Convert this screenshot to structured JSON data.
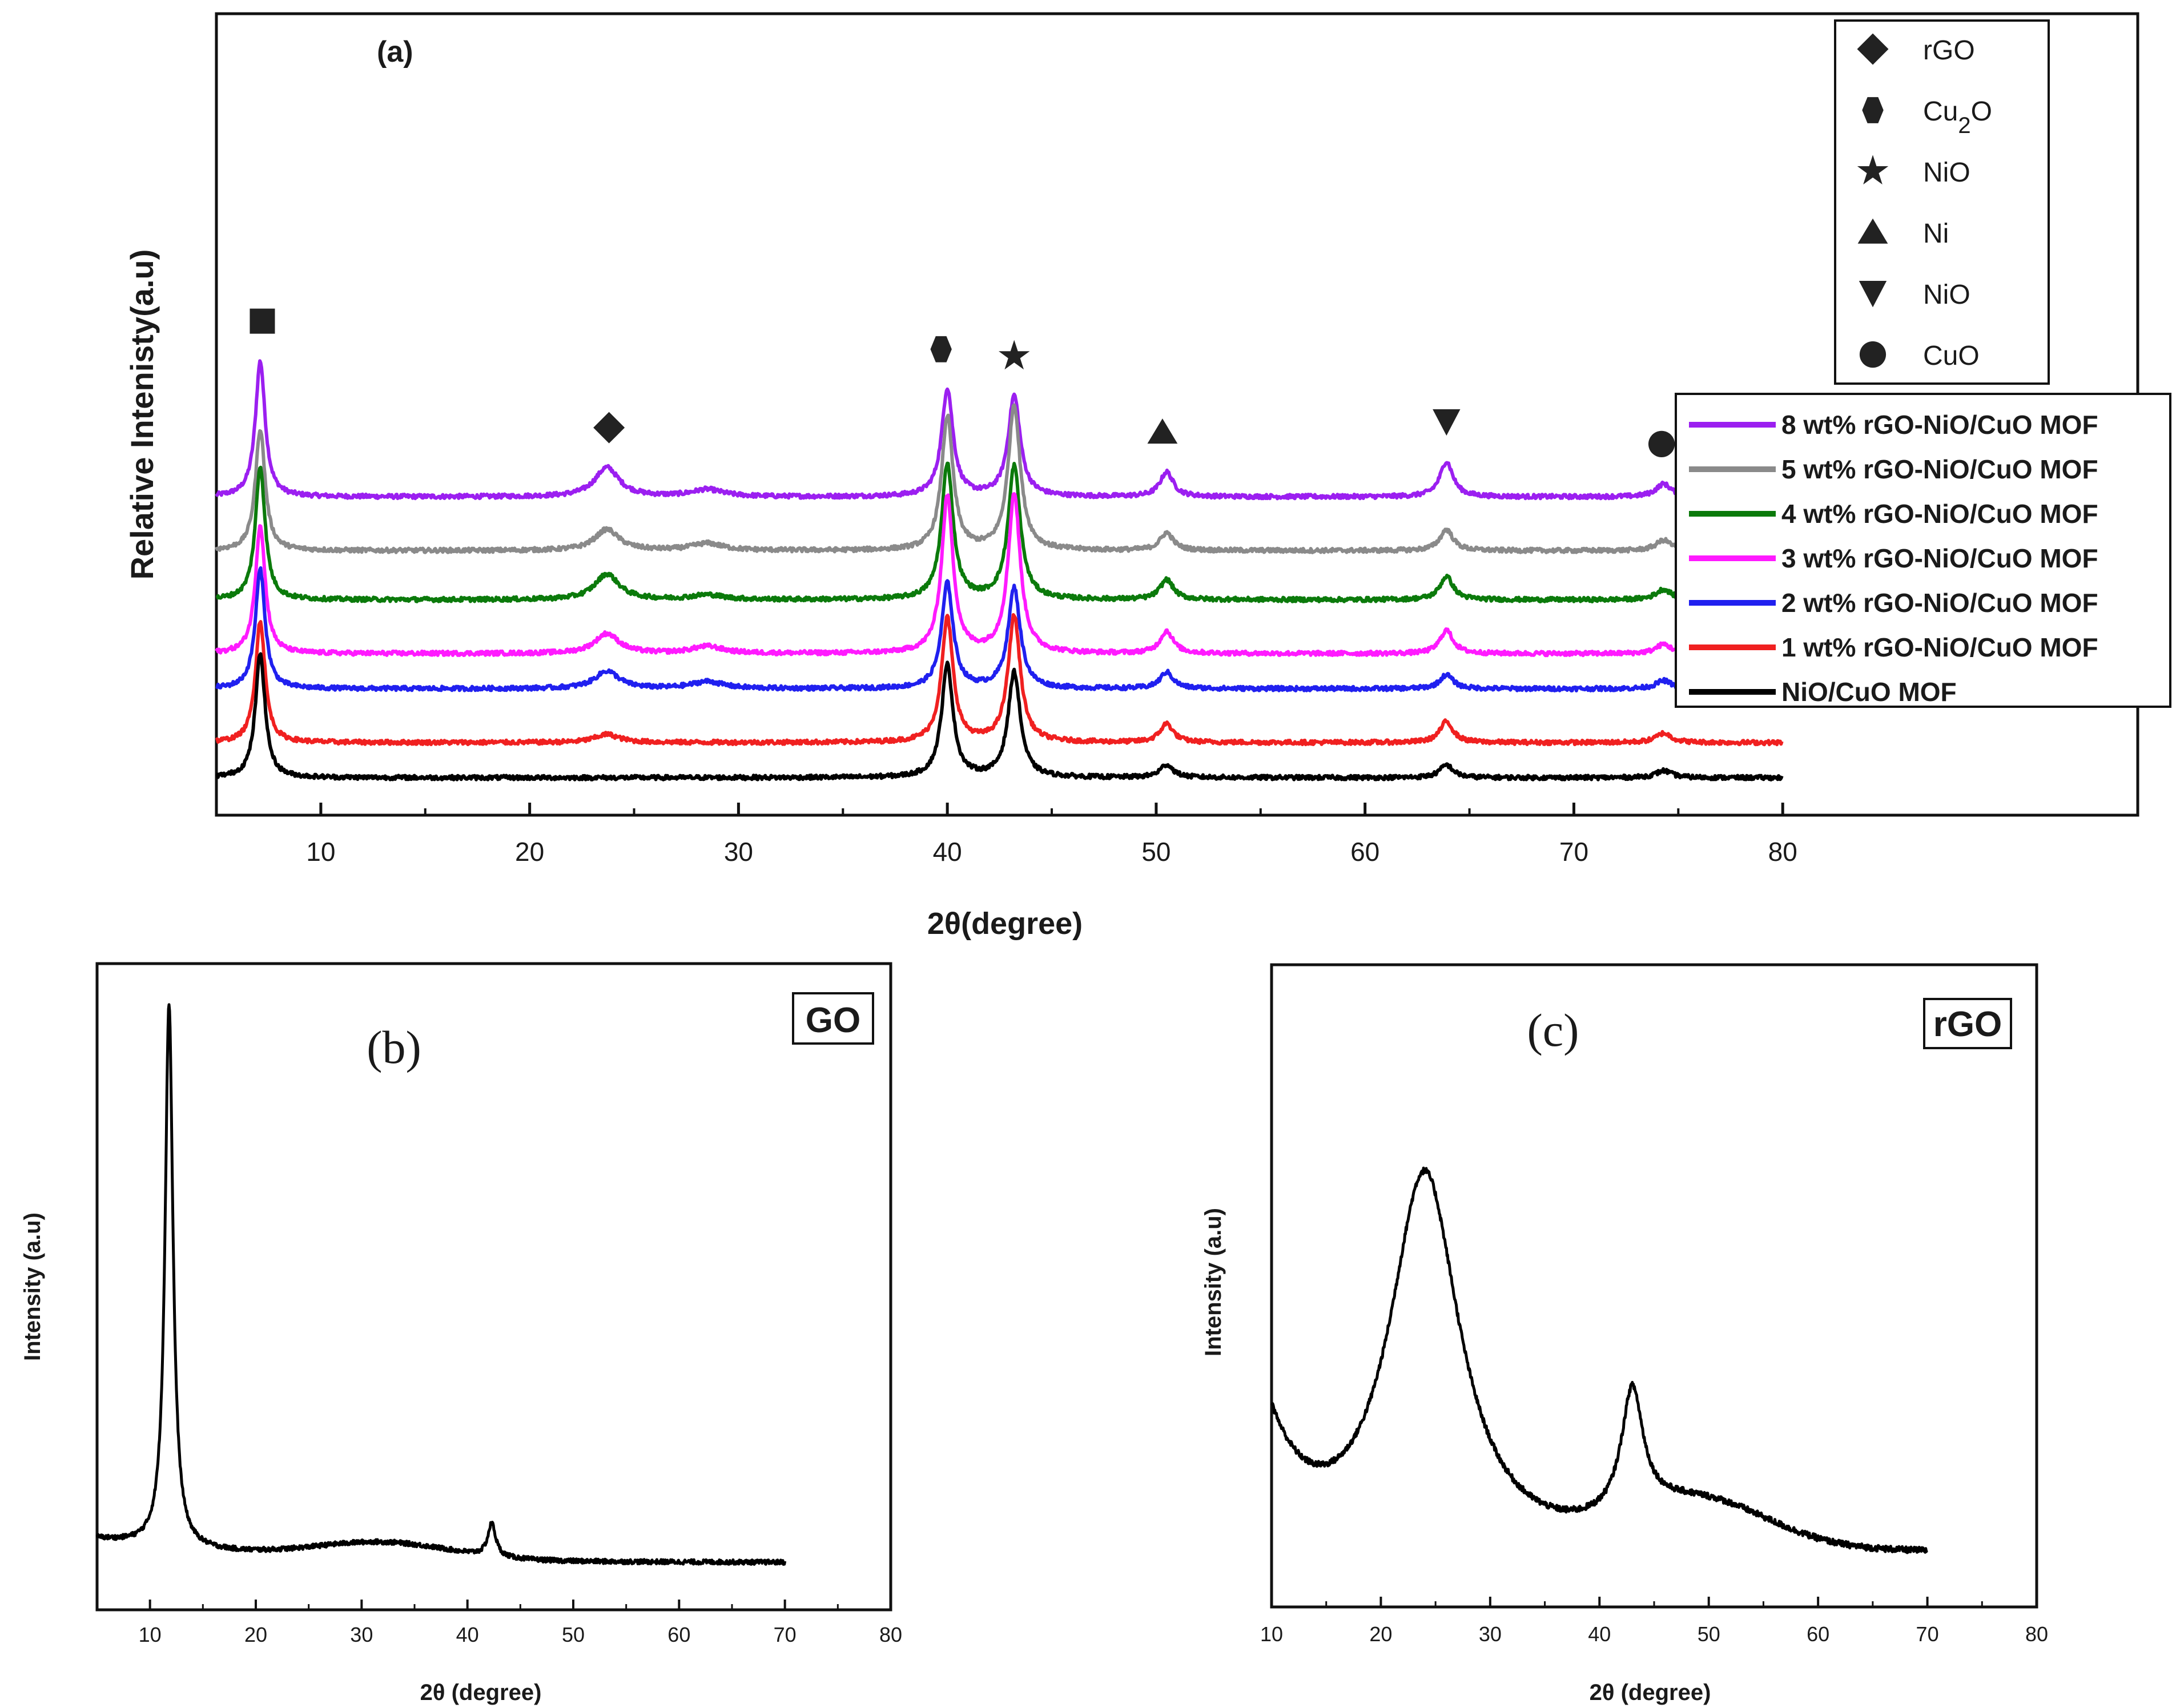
{
  "chart_data": [
    {
      "id": "a",
      "type": "line",
      "panel_label": "(a)",
      "xlabel": "2θ(degree)",
      "ylabel": "Relative Intenisty(a.u)",
      "xlim": [
        5,
        97
      ],
      "xticks": [
        10,
        20,
        30,
        40,
        50,
        60,
        70,
        80
      ],
      "x_data_range": [
        5,
        80
      ],
      "peaks": [
        {
          "x": 7.1,
          "w": 0.28
        },
        {
          "x": 23.7,
          "w": 0.7
        },
        {
          "x": 28.5,
          "w": 0.9
        },
        {
          "x": 40.0,
          "w": 0.33
        },
        {
          "x": 43.2,
          "w": 0.35
        },
        {
          "x": 50.5,
          "w": 0.38
        },
        {
          "x": 63.9,
          "w": 0.38
        },
        {
          "x": 74.3,
          "w": 0.45
        }
      ],
      "series": [
        {
          "name": "8 wt% rGO-NiO/CuO MOF",
          "color": "#9b1ff0",
          "offset": 13.6,
          "heights": [
            5.8,
            1.25,
            0.3,
            4.6,
            4.3,
            1.05,
            1.5,
            0.55
          ]
        },
        {
          "name": "5 wt% rGO-NiO/CuO MOF",
          "color": "#8a8a8a",
          "offset": 11.3,
          "heights": [
            5.2,
            0.9,
            0.3,
            5.7,
            6.2,
            0.75,
            0.9,
            0.45
          ]
        },
        {
          "name": "4 wt% rGO-NiO/CuO MOF",
          "color": "#0b7a0b",
          "offset": 9.2,
          "heights": [
            5.7,
            1.1,
            0.2,
            5.8,
            5.7,
            0.85,
            1.0,
            0.45
          ]
        },
        {
          "name": "3 wt% rGO-NiO/CuO MOF",
          "color": "#ff1aff",
          "offset": 6.9,
          "heights": [
            5.5,
            0.85,
            0.3,
            6.7,
            6.8,
            0.95,
            1.0,
            0.4
          ]
        },
        {
          "name": "2 wt% rGO-NiO/CuO MOF",
          "color": "#2020ef",
          "offset": 5.4,
          "heights": [
            5.1,
            0.75,
            0.3,
            4.5,
            4.3,
            0.7,
            0.6,
            0.35
          ]
        },
        {
          "name": "1 wt% rGO-NiO/CuO MOF",
          "color": "#f02020",
          "offset": 3.1,
          "heights": [
            5.2,
            0.35,
            0.0,
            5.3,
            5.4,
            0.8,
            0.9,
            0.4
          ]
        },
        {
          "name": "NiO/CuO MOF",
          "color": "#000000",
          "offset": 1.6,
          "heights": [
            5.3,
            0.0,
            0.0,
            4.8,
            4.5,
            0.55,
            0.55,
            0.3
          ]
        }
      ],
      "phase_markers": [
        {
          "shape": "square",
          "x": 7.2
        },
        {
          "shape": "diamond",
          "x": 23.8
        },
        {
          "shape": "hexagon",
          "x": 39.7
        },
        {
          "shape": "star",
          "x": 43.2
        },
        {
          "shape": "triangle-up",
          "x": 50.3
        },
        {
          "shape": "triangle-down",
          "x": 63.9
        },
        {
          "shape": "circle",
          "x": 74.2
        }
      ],
      "phase_legend": [
        {
          "shape": "diamond",
          "label": "rGO",
          "sub": ""
        },
        {
          "shape": "hexagon",
          "label": "Cu",
          "sub": "2",
          "suffix": "O"
        },
        {
          "shape": "star",
          "label": "NiO",
          "sub": ""
        },
        {
          "shape": "triangle-up",
          "label": "Ni",
          "sub": ""
        },
        {
          "shape": "triangle-down",
          "label": "NiO",
          "sub": ""
        },
        {
          "shape": "circle",
          "label": "CuO",
          "sub": ""
        }
      ]
    },
    {
      "id": "b",
      "type": "line",
      "panel_label": "(b)",
      "tag": "GO",
      "xlabel": "2θ (degree)",
      "ylabel": "Intensity (a.u)",
      "xlim": [
        5,
        80
      ],
      "xticks": [
        10,
        20,
        30,
        40,
        50,
        60,
        70,
        80
      ],
      "x_data_range": [
        5,
        70
      ],
      "series": [
        {
          "name": "GO",
          "color": "#000000"
        }
      ]
    },
    {
      "id": "c",
      "type": "line",
      "panel_label": "(c)",
      "tag": "rGO",
      "xlabel": "2θ (degree)",
      "ylabel": "Intensity (a.u)",
      "xlim": [
        10,
        80
      ],
      "xticks": [
        10,
        20,
        30,
        40,
        50,
        60,
        70,
        80
      ],
      "x_data_range": [
        10,
        70
      ],
      "series": [
        {
          "name": "rGO",
          "color": "#000000"
        }
      ]
    }
  ]
}
